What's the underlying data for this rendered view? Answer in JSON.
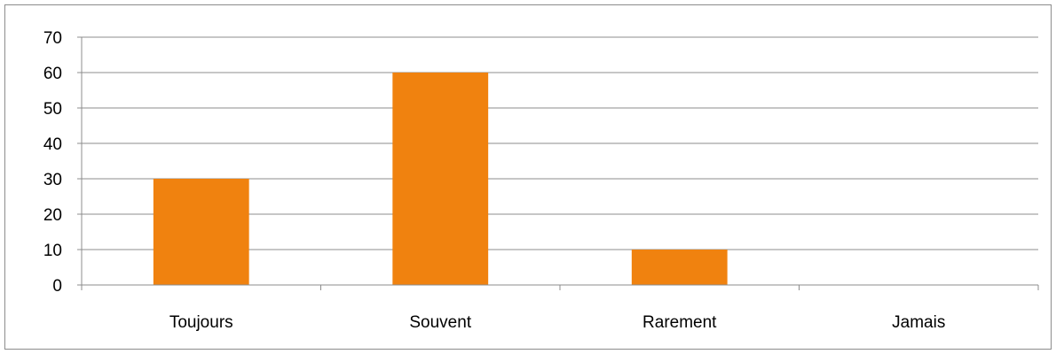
{
  "chart_data": {
    "type": "bar",
    "categories": [
      "Toujours",
      "Souvent",
      "Rarement",
      "Jamais"
    ],
    "values": [
      30,
      60,
      10,
      0
    ],
    "title": "",
    "xlabel": "",
    "ylabel": "",
    "ylim": [
      0,
      70
    ],
    "yticks": [
      "0",
      "10",
      "20",
      "30",
      "40",
      "50",
      "60",
      "70"
    ],
    "grid": true,
    "legend": "none",
    "colors": {
      "bar": "#F0820F",
      "grid": "#8c8c8c",
      "axis": "#8c8c8c",
      "frame": "#8c8c8c"
    }
  }
}
